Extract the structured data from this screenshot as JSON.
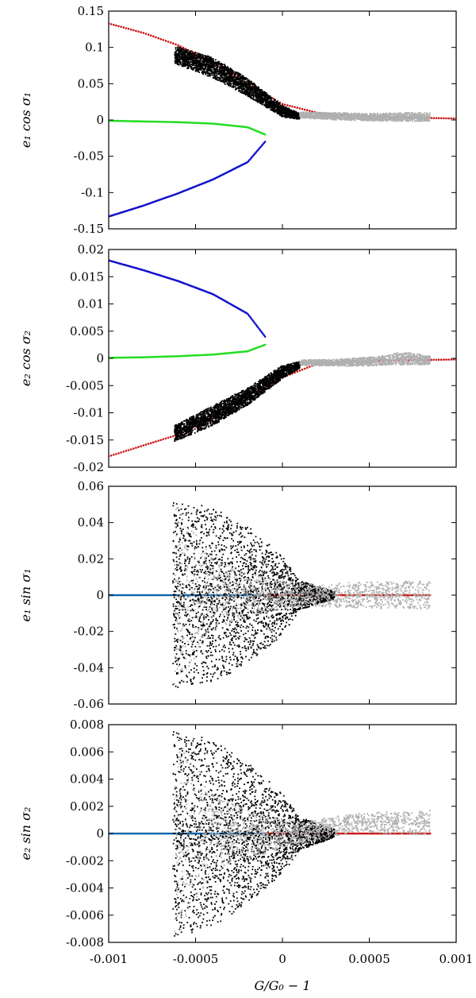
{
  "figure": {
    "xlabel": "G/G₀ − 1",
    "x_tick_labels": [
      "-0.001",
      "-0.0005",
      "0",
      "0.0005",
      "0.001"
    ],
    "xlim": [
      -0.001,
      0.001
    ]
  },
  "chart_data": [
    {
      "type": "scatter",
      "ylabel": "e₁ cos σ₁",
      "ylim": [
        -0.15,
        0.15
      ],
      "y_ticks": [
        -0.15,
        -0.1,
        -0.05,
        0,
        0.05,
        0.1,
        0.15
      ],
      "y_tick_labels": [
        "-0.15",
        "-0.1",
        "-0.05",
        "0",
        "0.05",
        "0.1",
        "0.15"
      ],
      "series": [
        {
          "name": "red stable branch",
          "color": "#cc1111",
          "x": [
            -0.001,
            -0.0008,
            -0.0006,
            -0.0004,
            -0.0002,
            0,
            0.0002,
            0.0004,
            0.0006,
            0.0008,
            0.001
          ],
          "y": [
            0.133,
            0.12,
            0.103,
            0.08,
            0.05,
            0.022,
            0.01,
            0.006,
            0.004,
            0.003,
            0.002
          ]
        },
        {
          "name": "green branch",
          "color": "#22dd22",
          "x": [
            -0.001,
            -0.0008,
            -0.0006,
            -0.0004,
            -0.0002,
            -0.0001
          ],
          "y": [
            -0.001,
            -0.002,
            -0.003,
            -0.005,
            -0.01,
            -0.02
          ]
        },
        {
          "name": "blue branch",
          "color": "#1111cc",
          "x": [
            -0.001,
            -0.0008,
            -0.0006,
            -0.0004,
            -0.0002,
            -0.0001
          ],
          "y": [
            -0.133,
            -0.118,
            -0.101,
            -0.082,
            -0.058,
            -0.03
          ]
        },
        {
          "name": "black band",
          "color": "#000000",
          "x": [
            -0.00062,
            -0.0004,
            -0.0002,
            0,
            0.0001
          ],
          "y": [
            0.09,
            0.072,
            0.045,
            0.012,
            0.005
          ],
          "spread": [
            0.012,
            0.014,
            0.012,
            0.008,
            0.004
          ]
        },
        {
          "name": "grey cloud",
          "color": "#b0b0b0",
          "x": [
            0.0001,
            0.0003,
            0.0005,
            0.0007,
            0.00085
          ],
          "y": [
            0.007,
            0.005,
            0.004,
            0.004,
            0.004
          ],
          "spread": [
            0.004,
            0.005,
            0.005,
            0.006,
            0.006
          ]
        }
      ]
    },
    {
      "type": "scatter",
      "ylabel": "e₂ cos σ₂",
      "ylim": [
        -0.02,
        0.02
      ],
      "y_ticks": [
        -0.02,
        -0.015,
        -0.01,
        -0.005,
        0,
        0.005,
        0.01,
        0.015,
        0.02
      ],
      "y_tick_labels": [
        "-0.02",
        "-0.015",
        "-0.01",
        "-0.005",
        "0",
        "0.005",
        "0.01",
        "0.015",
        "0.02"
      ],
      "series": [
        {
          "name": "red stable branch",
          "color": "#cc1111",
          "x": [
            -0.001,
            -0.0008,
            -0.0006,
            -0.0004,
            -0.0002,
            0,
            0.0002,
            0.0004,
            0.0006,
            0.0008,
            0.001
          ],
          "y": [
            -0.018,
            -0.016,
            -0.014,
            -0.011,
            -0.0075,
            -0.0035,
            -0.001,
            -0.0006,
            -0.0004,
            -0.0003,
            -0.0002
          ]
        },
        {
          "name": "green branch",
          "color": "#22dd22",
          "x": [
            -0.001,
            -0.0008,
            -0.0006,
            -0.0004,
            -0.0002,
            -0.0001
          ],
          "y": [
            0.0001,
            0.0002,
            0.0004,
            0.0007,
            0.0013,
            0.0025
          ]
        },
        {
          "name": "blue branch",
          "color": "#1111cc",
          "x": [
            -0.001,
            -0.0008,
            -0.0006,
            -0.0004,
            -0.0002,
            -0.0001
          ],
          "y": [
            0.018,
            0.0162,
            0.0142,
            0.0118,
            0.0082,
            0.004
          ]
        },
        {
          "name": "black band",
          "color": "#000000",
          "x": [
            -0.00062,
            -0.0004,
            -0.0002,
            0,
            0.0001
          ],
          "y": [
            -0.0138,
            -0.0105,
            -0.007,
            -0.0025,
            -0.0012
          ],
          "spread": [
            0.0015,
            0.0018,
            0.0016,
            0.0012,
            0.0006
          ]
        },
        {
          "name": "grey cloud",
          "color": "#b0b0b0",
          "x": [
            0.0001,
            0.0003,
            0.0005,
            0.0007,
            0.00085
          ],
          "y": [
            -0.0008,
            -0.0008,
            -0.0006,
            0.0,
            -0.0004
          ],
          "spread": [
            0.0005,
            0.0006,
            0.0008,
            0.0012,
            0.0008
          ]
        }
      ]
    },
    {
      "type": "scatter",
      "ylabel": "e₁ sin σ₁",
      "ylim": [
        -0.06,
        0.06
      ],
      "y_ticks": [
        -0.06,
        -0.04,
        -0.02,
        0,
        0.02,
        0.04,
        0.06
      ],
      "y_tick_labels": [
        "-0.06",
        "-0.04",
        "-0.02",
        "0",
        "0.02",
        "0.04",
        "0.06"
      ],
      "series": [
        {
          "name": "blue/green zero line",
          "color": "#1166aa",
          "x": [
            -0.001,
            -0.0001
          ],
          "y": [
            0,
            0
          ]
        },
        {
          "name": "red zero line",
          "color": "#cc1111",
          "x": [
            -0.0001,
            0.00085
          ],
          "y": [
            0,
            0
          ]
        },
        {
          "name": "black cloud",
          "color": "#000000",
          "x": [
            -0.00063,
            -0.0004,
            -0.0002,
            0,
            0.0001,
            0.0003
          ],
          "y": [
            0,
            0,
            0,
            0,
            0,
            0
          ],
          "spread": [
            0.053,
            0.048,
            0.038,
            0.022,
            0.008,
            0.002
          ]
        },
        {
          "name": "grey cloud",
          "color": "#b0b0b0",
          "x": [
            -0.00062,
            -0.0004,
            -0.0002,
            0.0001,
            0.0004,
            0.00085
          ],
          "y": [
            0,
            0,
            0,
            0,
            0,
            0
          ],
          "spread": [
            0.052,
            0.02,
            0.012,
            0.006,
            0.007,
            0.008
          ]
        }
      ]
    },
    {
      "type": "scatter",
      "ylabel": "e₂ sin σ₂",
      "ylim": [
        -0.008,
        0.008
      ],
      "y_ticks": [
        -0.008,
        -0.006,
        -0.004,
        -0.002,
        0,
        0.002,
        0.004,
        0.006,
        0.008
      ],
      "y_tick_labels": [
        "-0.008",
        "-0.006",
        "-0.004",
        "-0.002",
        "0",
        "0.002",
        "0.004",
        "0.006",
        "0.008"
      ],
      "series": [
        {
          "name": "blue/green zero line",
          "color": "#1166aa",
          "x": [
            -0.001,
            -0.0001
          ],
          "y": [
            0,
            0
          ]
        },
        {
          "name": "red zero line",
          "color": "#cc1111",
          "x": [
            -0.0001,
            0.00085
          ],
          "y": [
            0,
            0
          ]
        },
        {
          "name": "black cloud",
          "color": "#000000",
          "x": [
            -0.00063,
            -0.0004,
            -0.0002,
            0,
            0.0001,
            0.0003
          ],
          "y": [
            0,
            0,
            0,
            0,
            0,
            0
          ],
          "spread": [
            0.0078,
            0.0068,
            0.0052,
            0.003,
            0.0012,
            0.0003
          ]
        },
        {
          "name": "grey cloud",
          "color": "#b0b0b0",
          "x": [
            -0.00062,
            -0.0004,
            -0.0002,
            0.0001,
            0.0004,
            0.00085
          ],
          "y": [
            0,
            0,
            0,
            0,
            0.0008,
            0.0008
          ],
          "spread": [
            0.0078,
            0.003,
            0.0018,
            0.0008,
            0.0007,
            0.0009
          ]
        }
      ]
    }
  ]
}
